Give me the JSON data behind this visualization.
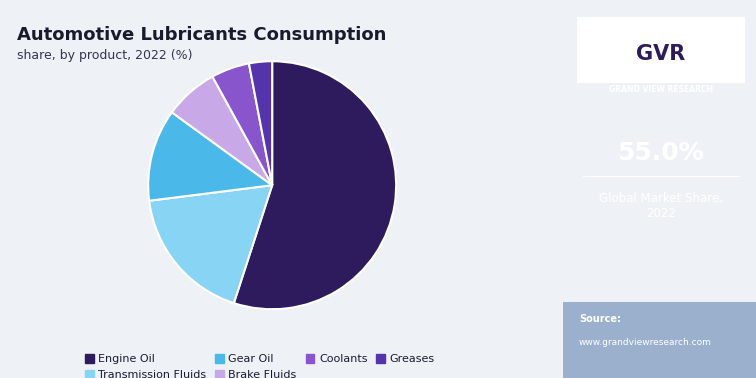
{
  "title": "Automotive Lubricants Consumption",
  "subtitle": "share, by product, 2022 (%)",
  "labels": [
    "Engine Oil",
    "Transmission Fluids",
    "Gear Oil",
    "Brake Fluids",
    "Coolants",
    "Greases"
  ],
  "values": [
    55.0,
    18.0,
    12.0,
    7.0,
    5.0,
    3.0
  ],
  "colors": [
    "#2d1b5e",
    "#87d4f5",
    "#4ab8e8",
    "#c9a8e8",
    "#8855cc",
    "#5533aa"
  ],
  "bg_color": "#eef2f7",
  "right_panel_color": "#2d1b5e",
  "market_share_value": "55.0%",
  "market_share_label": "Global Market Share,\n2022",
  "source_text": "Source:\nwww.grandviewresearch.com",
  "legend_items": [
    {
      "label": "Engine Oil",
      "color": "#2d1b5e"
    },
    {
      "label": "Transmission Fluids",
      "color": "#87d4f5"
    },
    {
      "label": "Gear Oil",
      "color": "#4ab8e8"
    },
    {
      "label": "Brake Fluids",
      "color": "#c9a8e8"
    },
    {
      "label": "Coolants",
      "color": "#8855cc"
    },
    {
      "label": "Greases",
      "color": "#5533aa"
    }
  ],
  "startangle": 90,
  "top_bar_color": "#87d4f5",
  "logo_bg_color": "#ffffff",
  "gvr_text": "GRAND VIEW RESEARCH",
  "source_label": "Source:",
  "source_url": "www.grandviewresearch.com"
}
